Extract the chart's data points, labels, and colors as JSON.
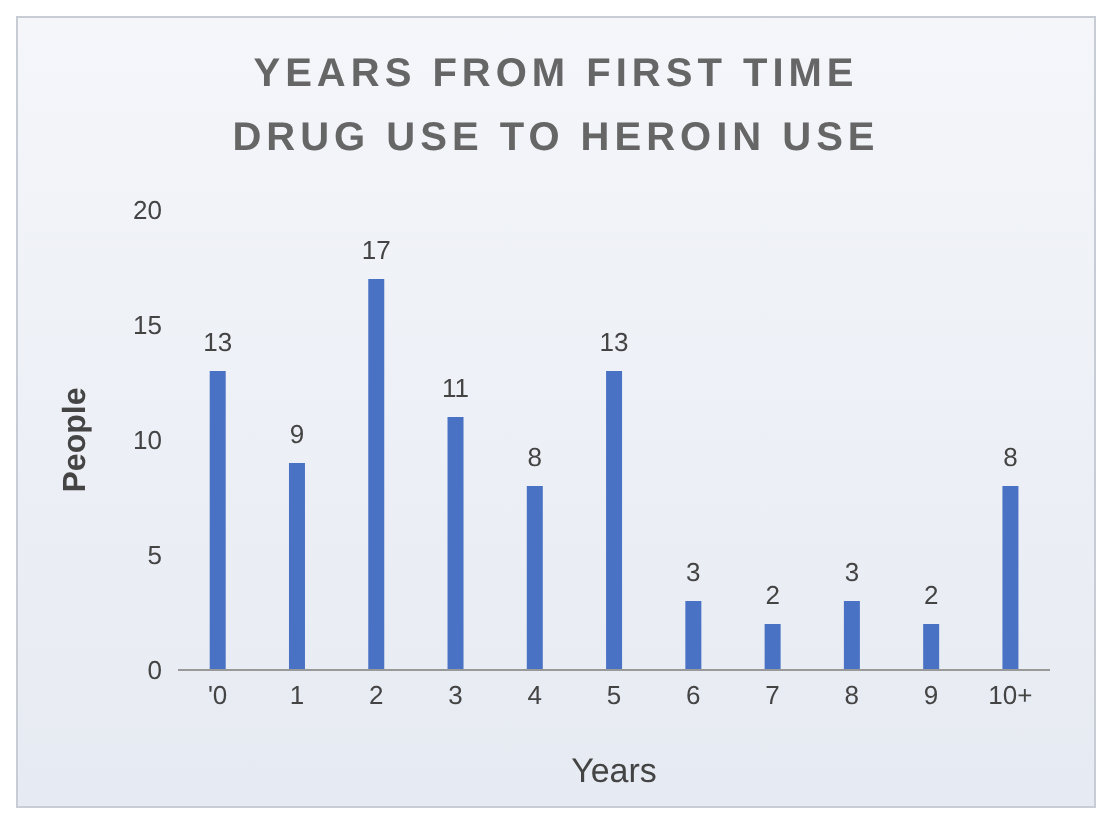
{
  "chart_data": {
    "type": "bar",
    "title": "YEARS FROM FIRST TIME DRUG USE TO HEROIN USE",
    "xlabel": "Years",
    "ylabel": "People",
    "categories": [
      "'0",
      "1",
      "2",
      "3",
      "4",
      "5",
      "6",
      "7",
      "8",
      "9",
      "10+"
    ],
    "values": [
      13,
      9,
      17,
      11,
      8,
      13,
      3,
      2,
      3,
      2,
      8
    ],
    "color": "#4a72c4",
    "ylim": [
      0,
      20
    ],
    "yticks": [
      0,
      5,
      10,
      15,
      20
    ],
    "data_labels": true,
    "grid": false,
    "legend": false
  }
}
